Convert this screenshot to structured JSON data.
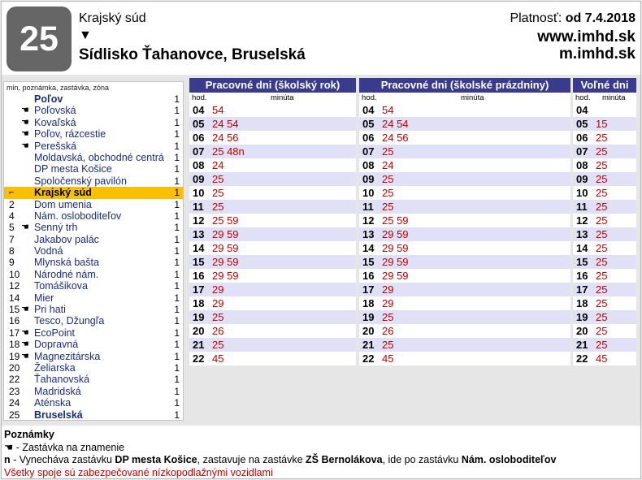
{
  "header": {
    "line": "25",
    "from": "Krajský súd",
    "arrow": "▼",
    "destination": "Sídlisko Ťahanovce, Bruselská",
    "validity_label": "Platnosť: ",
    "validity_value": "od 7.4.2018",
    "web1": "www.imhd.sk",
    "web2": "m.imhd.sk"
  },
  "stops": {
    "header": "min, poznámka, zastávka, zóna",
    "items": [
      {
        "no": "",
        "request": false,
        "name": "Poľov",
        "zone": "1",
        "bold": true,
        "current": false
      },
      {
        "no": "",
        "request": true,
        "name": "Poľovská",
        "zone": "1",
        "bold": false,
        "current": false
      },
      {
        "no": "",
        "request": true,
        "name": "Kovaľská",
        "zone": "1",
        "bold": false,
        "current": false
      },
      {
        "no": "",
        "request": true,
        "name": "Poľov, rázcestie",
        "zone": "1",
        "bold": false,
        "current": false
      },
      {
        "no": "",
        "request": true,
        "name": "Perešská",
        "zone": "1",
        "bold": false,
        "current": false
      },
      {
        "no": "",
        "request": false,
        "name": "Moldavská, obchodné centrá",
        "zone": "1",
        "bold": false,
        "current": false
      },
      {
        "no": "",
        "request": false,
        "name": "DP mesta Košice",
        "zone": "1",
        "bold": false,
        "current": false
      },
      {
        "no": "",
        "request": false,
        "name": "Spoločenský pavilón",
        "zone": "1",
        "bold": false,
        "current": false
      },
      {
        "no": "⌐",
        "request": false,
        "name": "Krajský súd",
        "zone": "1",
        "bold": true,
        "current": true
      },
      {
        "no": "2",
        "request": false,
        "name": "Dom umenia",
        "zone": "1",
        "bold": false,
        "current": false
      },
      {
        "no": "4",
        "request": false,
        "name": "Nám. osloboditeľov",
        "zone": "1",
        "bold": false,
        "current": false
      },
      {
        "no": "5",
        "request": true,
        "name": "Senný trh",
        "zone": "1",
        "bold": false,
        "current": false
      },
      {
        "no": "7",
        "request": false,
        "name": "Jakabov palác",
        "zone": "1",
        "bold": false,
        "current": false
      },
      {
        "no": "8",
        "request": false,
        "name": "Vodná",
        "zone": "1",
        "bold": false,
        "current": false
      },
      {
        "no": "9",
        "request": false,
        "name": "Mlynská bašta",
        "zone": "1",
        "bold": false,
        "current": false
      },
      {
        "no": "10",
        "request": false,
        "name": "Národné nám.",
        "zone": "1",
        "bold": false,
        "current": false
      },
      {
        "no": "12",
        "request": false,
        "name": "Tomášikova",
        "zone": "1",
        "bold": false,
        "current": false
      },
      {
        "no": "14",
        "request": false,
        "name": "Mier",
        "zone": "1",
        "bold": false,
        "current": false
      },
      {
        "no": "15",
        "request": true,
        "name": "Pri hati",
        "zone": "1",
        "bold": false,
        "current": false
      },
      {
        "no": "16",
        "request": false,
        "name": "Tesco, Džungľa",
        "zone": "1",
        "bold": false,
        "current": false
      },
      {
        "no": "17",
        "request": true,
        "name": "EcoPoint",
        "zone": "1",
        "bold": false,
        "current": false
      },
      {
        "no": "18",
        "request": true,
        "name": "Dopravná",
        "zone": "1",
        "bold": false,
        "current": false
      },
      {
        "no": "19",
        "request": true,
        "name": "Magnezitárska",
        "zone": "1",
        "bold": false,
        "current": false
      },
      {
        "no": "20",
        "request": false,
        "name": "Želiarska",
        "zone": "1",
        "bold": false,
        "current": false
      },
      {
        "no": "22",
        "request": false,
        "name": "Ťahanovská",
        "zone": "1",
        "bold": false,
        "current": false
      },
      {
        "no": "23",
        "request": false,
        "name": "Madridská",
        "zone": "1",
        "bold": false,
        "current": false
      },
      {
        "no": "24",
        "request": false,
        "name": "Aténska",
        "zone": "1",
        "bold": false,
        "current": false
      },
      {
        "no": "25",
        "request": false,
        "name": "Bruselská",
        "zone": "1",
        "bold": true,
        "current": false
      }
    ]
  },
  "timetables": [
    {
      "title": "Pracovné dni (školský rok)",
      "hour_label": "hod.",
      "minute_label": "minúta",
      "rows": [
        {
          "h": "04",
          "m": "54"
        },
        {
          "h": "05",
          "m": "24 54"
        },
        {
          "h": "06",
          "m": "24 56"
        },
        {
          "h": "07",
          "m": "25 48n"
        },
        {
          "h": "08",
          "m": "24"
        },
        {
          "h": "09",
          "m": "25"
        },
        {
          "h": "10",
          "m": "25"
        },
        {
          "h": "11",
          "m": "25"
        },
        {
          "h": "12",
          "m": "25 59"
        },
        {
          "h": "13",
          "m": "29 59"
        },
        {
          "h": "14",
          "m": "29 59"
        },
        {
          "h": "15",
          "m": "29 59"
        },
        {
          "h": "16",
          "m": "29 59"
        },
        {
          "h": "17",
          "m": "29"
        },
        {
          "h": "18",
          "m": "29"
        },
        {
          "h": "19",
          "m": "25"
        },
        {
          "h": "20",
          "m": "26"
        },
        {
          "h": "21",
          "m": "25"
        },
        {
          "h": "22",
          "m": "45"
        }
      ]
    },
    {
      "title": "Pracovné dni (školské prázdniny)",
      "hour_label": "hod.",
      "minute_label": "minúta",
      "rows": [
        {
          "h": "04",
          "m": "54"
        },
        {
          "h": "05",
          "m": "24 54"
        },
        {
          "h": "06",
          "m": "24 56"
        },
        {
          "h": "07",
          "m": "25"
        },
        {
          "h": "08",
          "m": "24"
        },
        {
          "h": "09",
          "m": "25"
        },
        {
          "h": "10",
          "m": "25"
        },
        {
          "h": "11",
          "m": "25"
        },
        {
          "h": "12",
          "m": "25 59"
        },
        {
          "h": "13",
          "m": "29 59"
        },
        {
          "h": "14",
          "m": "29 59"
        },
        {
          "h": "15",
          "m": "29 59"
        },
        {
          "h": "16",
          "m": "29 59"
        },
        {
          "h": "17",
          "m": "29"
        },
        {
          "h": "18",
          "m": "29"
        },
        {
          "h": "19",
          "m": "25"
        },
        {
          "h": "20",
          "m": "26"
        },
        {
          "h": "21",
          "m": "25"
        },
        {
          "h": "22",
          "m": "45"
        }
      ]
    },
    {
      "title": "Voľné dni",
      "hour_label": "hod.",
      "minute_label": "minúta",
      "rows": [
        {
          "h": "04",
          "m": ""
        },
        {
          "h": "05",
          "m": "15"
        },
        {
          "h": "06",
          "m": "25"
        },
        {
          "h": "07",
          "m": "25"
        },
        {
          "h": "08",
          "m": "25"
        },
        {
          "h": "09",
          "m": "25"
        },
        {
          "h": "10",
          "m": "25"
        },
        {
          "h": "11",
          "m": "25"
        },
        {
          "h": "12",
          "m": "25"
        },
        {
          "h": "13",
          "m": "25"
        },
        {
          "h": "14",
          "m": "25"
        },
        {
          "h": "15",
          "m": "25"
        },
        {
          "h": "16",
          "m": "25"
        },
        {
          "h": "17",
          "m": "25"
        },
        {
          "h": "18",
          "m": "25"
        },
        {
          "h": "19",
          "m": "25"
        },
        {
          "h": "20",
          "m": "25"
        },
        {
          "h": "21",
          "m": "25"
        },
        {
          "h": "22",
          "m": "45"
        }
      ]
    }
  ],
  "notes": {
    "title": "Poznámky",
    "request_symbol": "☚",
    "request_text": " - Zastávka na znamenie",
    "n_key": "n",
    "n_text_1": " - Vynecháva zastávku ",
    "n_bold_1": "DP mesta Košice",
    "n_text_2": ", zastavuje na zastávke ",
    "n_bold_2": "ZŠ Bernolákova",
    "n_text_3": ", ide po zastávku ",
    "n_bold_3": "Nám. osloboditeľov",
    "accessibility": "Všetky spoje sú zabezpečované nízkopodlažnými vozidlami"
  },
  "colors": {
    "title_bar": "#3b3b8e",
    "minutes": "#c00000",
    "row_stripe": "#e0e0f6",
    "current_stop": "#f8c000",
    "line_badge": "#666666"
  }
}
